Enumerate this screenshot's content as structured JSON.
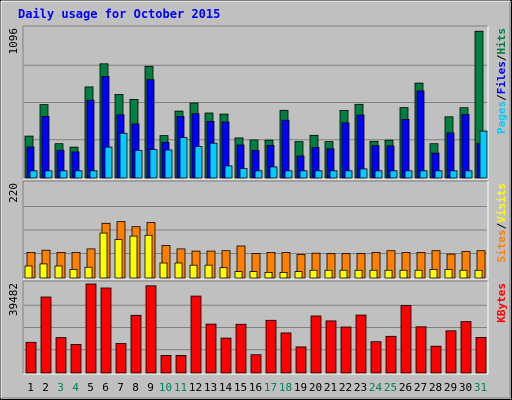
{
  "chart_data": {
    "type": "bar",
    "title": "Daily usage for October 2015",
    "categories": [
      "1",
      "2",
      "3",
      "4",
      "5",
      "6",
      "7",
      "8",
      "9",
      "10",
      "11",
      "12",
      "13",
      "14",
      "15",
      "16",
      "17",
      "18",
      "19",
      "20",
      "21",
      "22",
      "23",
      "24",
      "25",
      "26",
      "27",
      "28",
      "29",
      "30",
      "31"
    ],
    "weekend_days": [
      "3",
      "4",
      "10",
      "11",
      "17",
      "18",
      "24",
      "25",
      "31"
    ],
    "panels": [
      {
        "id": "hits-files-pages",
        "ymax_label": "1096",
        "ylim": [
          0,
          1096
        ],
        "legend": [
          "Pages",
          "/",
          "Files",
          "/",
          "Hits"
        ],
        "series": [
          {
            "name": "Hits",
            "color": "#008040",
            "values": [
              308,
              540,
              252,
              227,
              670,
              840,
              615,
              578,
              822,
              312,
              492,
              552,
              478,
              470,
              295,
              280,
              278,
              498,
              268,
              314,
              268,
              497,
              542,
              270,
              278,
              518,
              698,
              252,
              450,
              517,
              1080
            ]
          },
          {
            "name": "Files",
            "color": "#0000ff",
            "values": [
              228,
              453,
              204,
              192,
              572,
              747,
              465,
              397,
              724,
              262,
              453,
              473,
              416,
              412,
              243,
              203,
              240,
              425,
              162,
              225,
              215,
              405,
              463,
              238,
              236,
              431,
              641,
              183,
              332,
              467,
              253
            ]
          },
          {
            "name": "Pages",
            "color": "#00ccff",
            "values": [
              53,
              53,
              53,
              53,
              53,
              227,
              329,
              203,
              209,
              206,
              297,
              232,
              256,
              89,
              70,
              53,
              82,
              53,
              53,
              53,
              53,
              53,
              67,
              53,
              53,
              53,
              53,
              53,
              53,
              53,
              345
            ]
          }
        ]
      },
      {
        "id": "visits-sites",
        "ymax_label": "220",
        "ylim": [
          0,
          220
        ],
        "legend": [
          "Sites",
          "/",
          "Visits"
        ],
        "series": [
          {
            "name": "Visits",
            "color": "#ff8000",
            "values": [
              60,
              65,
              60,
              60,
              68,
              128,
              132,
              120,
              130,
              76,
              68,
              63,
              63,
              64,
              75,
              57,
              60,
              60,
              55,
              58,
              57,
              57,
              57,
              60,
              64,
              60,
              60,
              64,
              56,
              62,
              64
            ]
          },
          {
            "name": "Sites",
            "color": "#ffff00",
            "values": [
              28,
              33,
              28,
              20,
              25,
              105,
              90,
              98,
              100,
              35,
              35,
              30,
              30,
              24,
              15,
              15,
              13,
              13,
              15,
              18,
              18,
              18,
              18,
              18,
              18,
              18,
              18,
              20,
              20,
              18,
              18
            ]
          }
        ]
      },
      {
        "id": "kbytes",
        "ymax_label": "39482",
        "ylim": [
          0,
          39482
        ],
        "legend": [
          "KBytes"
        ],
        "series": [
          {
            "name": "KBytes",
            "color": "#ff0000",
            "values": [
              13600,
              33700,
              15700,
              12700,
              39482,
              37700,
              13100,
              25600,
              38700,
              7800,
              7800,
              34100,
              21700,
              15500,
              21600,
              8100,
              23400,
              17800,
              11600,
              25300,
              23100,
              20400,
              25700,
              13900,
              16300,
              29900,
              20500,
              11900,
              18700,
              22800,
              15800
            ]
          }
        ]
      }
    ]
  }
}
